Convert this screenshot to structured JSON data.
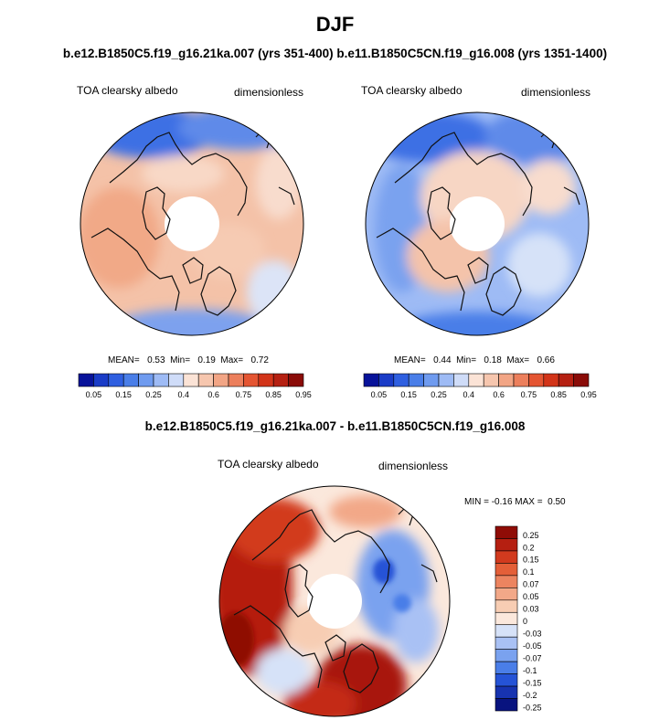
{
  "header": {
    "title": "DJF",
    "subtitle": "b.e12.B1850C5.f19_g16.21ka.007 (yrs 351-400) b.e11.B1850C5CN.f19_g16.008 (yrs 1351-1400)",
    "difference_title": "b.e12.B1850C5.f19_g16.21ka.007 - b.e11.B1850C5CN.f19_g16.008"
  },
  "colors": {
    "abs_scale": [
      "#08139a",
      "#1a3cc7",
      "#2f5fe0",
      "#4a7ee8",
      "#6f9bef",
      "#9ebbf5",
      "#cfdcf8",
      "#fbe3d6",
      "#f6c6ae",
      "#f2a585",
      "#ec7f5c",
      "#e45532",
      "#d23419",
      "#b52012",
      "#8a0c08"
    ],
    "diff_scale": [
      "#08137f",
      "#1733b0",
      "#2553d6",
      "#4a7ee8",
      "#7aa2ef",
      "#a9c1f4",
      "#d6e2f8",
      "#fbe8dc",
      "#f7cdb3",
      "#f2a888",
      "#ec8460",
      "#e45f38",
      "#d23a1e",
      "#b51f11",
      "#8f0c06"
    ]
  },
  "chart_data": [
    {
      "type": "heatmap",
      "projection": "north polar stereographic",
      "panel": "case 1 (21ka)",
      "title_left": "TOA clearsky albedo",
      "title_right": "dimensionless",
      "stats_label": "MEAN=   0.53  Min=   0.19  Max=   0.72",
      "stats": {
        "mean": 0.53,
        "min": 0.19,
        "max": 0.72
      },
      "colorbar_levels": [
        0.05,
        0.1,
        0.15,
        0.2,
        0.25,
        0.3,
        0.4,
        0.5,
        0.6,
        0.7,
        0.75,
        0.8,
        0.85,
        0.9,
        0.95
      ],
      "colorbar_tick_labels": [
        "0.05",
        "0.15",
        "0.25",
        "0.4",
        "0.6",
        "0.75",
        "0.85",
        "0.95"
      ],
      "colorbar_range": [
        0,
        1
      ]
    },
    {
      "type": "heatmap",
      "projection": "north polar stereographic",
      "panel": "case 2 (1850 control)",
      "title_left": "TOA clearsky albedo",
      "title_right": "dimensionless",
      "stats_label": "MEAN=   0.44  Min=   0.18  Max=   0.66",
      "stats": {
        "mean": 0.44,
        "min": 0.18,
        "max": 0.66
      },
      "colorbar_levels": [
        0.05,
        0.1,
        0.15,
        0.2,
        0.25,
        0.3,
        0.4,
        0.5,
        0.6,
        0.7,
        0.75,
        0.8,
        0.85,
        0.9,
        0.95
      ],
      "colorbar_tick_labels": [
        "0.05",
        "0.15",
        "0.25",
        "0.4",
        "0.6",
        "0.75",
        "0.85",
        "0.95"
      ],
      "colorbar_range": [
        0,
        1
      ]
    },
    {
      "type": "heatmap",
      "projection": "north polar stereographic",
      "panel": "difference",
      "title_left": "TOA clearsky albedo",
      "title_right": "dimensionless",
      "stats_label": "MIN = -0.16 MAX =  0.50",
      "stats": {
        "min": -0.16,
        "max": 0.5
      },
      "colorbar_levels": [
        -0.25,
        -0.2,
        -0.15,
        -0.1,
        -0.07,
        -0.05,
        -0.03,
        0,
        0.03,
        0.05,
        0.07,
        0.1,
        0.15,
        0.2,
        0.25
      ],
      "colorbar_tick_labels": [
        "-0.25",
        "-0.2",
        "-0.15",
        "-0.1",
        "-0.07",
        "-0.05",
        "-0.03",
        "0",
        "0.03",
        "0.05",
        "0.07",
        "0.1",
        "0.15",
        "0.2",
        "0.25"
      ],
      "colorbar_orientation": "vertical"
    }
  ]
}
